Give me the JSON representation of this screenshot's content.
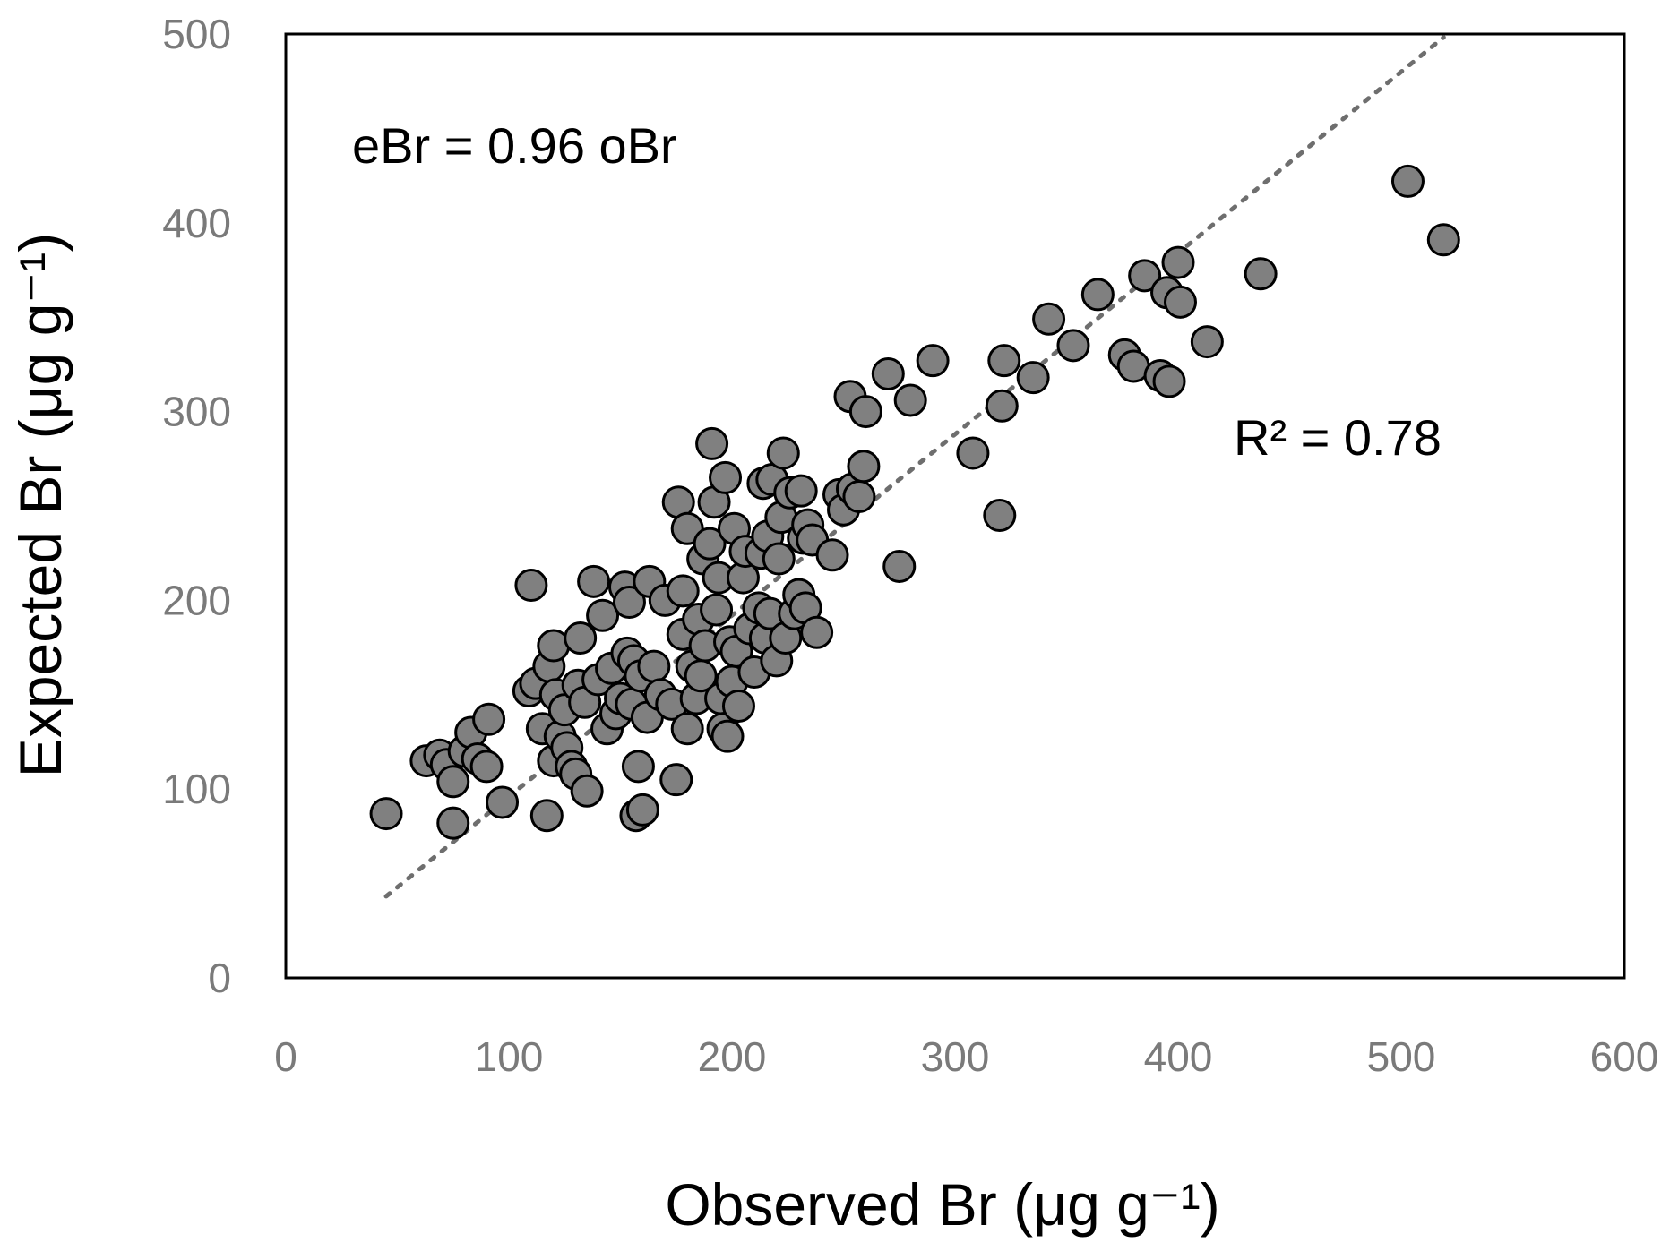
{
  "chart_data": {
    "type": "scatter",
    "xlabel": "Observed Br (μg g⁻¹)",
    "ylabel": "Expected Br (μg g⁻¹)",
    "xlim": [
      0,
      600
    ],
    "ylim": [
      0,
      500
    ],
    "x_ticks": [
      "0",
      "100",
      "200",
      "300",
      "400",
      "500",
      "600"
    ],
    "y_ticks": [
      "0",
      "100",
      "200",
      "300",
      "400",
      "500"
    ],
    "grid": false,
    "marker_color": "#808080",
    "marker_edge_color": "#000000",
    "trendline": {
      "slope": 0.96,
      "intercept": 0,
      "x_range": [
        45,
        519
      ],
      "style": "dotted",
      "color": "#6e6e6e"
    },
    "equation_label": "eBr = 0.96 oBr",
    "r2_label": "R² = 0.78",
    "points": [
      [
        45,
        87
      ],
      [
        63,
        115
      ],
      [
        69,
        118
      ],
      [
        72,
        113
      ],
      [
        75,
        104
      ],
      [
        75,
        82
      ],
      [
        80,
        120
      ],
      [
        83,
        130
      ],
      [
        86,
        116
      ],
      [
        90,
        112
      ],
      [
        91,
        137
      ],
      [
        97,
        93
      ],
      [
        109,
        152
      ],
      [
        110,
        208
      ],
      [
        112,
        156
      ],
      [
        115,
        132
      ],
      [
        117,
        86
      ],
      [
        118,
        165
      ],
      [
        120,
        115
      ],
      [
        120,
        176
      ],
      [
        121,
        150
      ],
      [
        123,
        128
      ],
      [
        125,
        142
      ],
      [
        126,
        122
      ],
      [
        128,
        112
      ],
      [
        130,
        108
      ],
      [
        131,
        155
      ],
      [
        132,
        180
      ],
      [
        134,
        146
      ],
      [
        135,
        99
      ],
      [
        138,
        210
      ],
      [
        140,
        158
      ],
      [
        142,
        192
      ],
      [
        144,
        132
      ],
      [
        146,
        164
      ],
      [
        148,
        140
      ],
      [
        150,
        148
      ],
      [
        152,
        207
      ],
      [
        153,
        172
      ],
      [
        154,
        199
      ],
      [
        155,
        145
      ],
      [
        156,
        168
      ],
      [
        157,
        86
      ],
      [
        158,
        112
      ],
      [
        159,
        160
      ],
      [
        160,
        89
      ],
      [
        162,
        138
      ],
      [
        163,
        210
      ],
      [
        165,
        165
      ],
      [
        168,
        150
      ],
      [
        170,
        200
      ],
      [
        173,
        145
      ],
      [
        175,
        105
      ],
      [
        176,
        252
      ],
      [
        178,
        205
      ],
      [
        178,
        182
      ],
      [
        180,
        238
      ],
      [
        180,
        132
      ],
      [
        182,
        165
      ],
      [
        184,
        148
      ],
      [
        185,
        190
      ],
      [
        186,
        160
      ],
      [
        187,
        222
      ],
      [
        188,
        176
      ],
      [
        190,
        230
      ],
      [
        191,
        283
      ],
      [
        192,
        252
      ],
      [
        193,
        195
      ],
      [
        194,
        212
      ],
      [
        195,
        148
      ],
      [
        196,
        132
      ],
      [
        197,
        265
      ],
      [
        198,
        128
      ],
      [
        199,
        178
      ],
      [
        200,
        157
      ],
      [
        201,
        238
      ],
      [
        202,
        173
      ],
      [
        203,
        144
      ],
      [
        205,
        212
      ],
      [
        206,
        226
      ],
      [
        208,
        185
      ],
      [
        210,
        162
      ],
      [
        212,
        196
      ],
      [
        213,
        225
      ],
      [
        214,
        262
      ],
      [
        215,
        180
      ],
      [
        216,
        234
      ],
      [
        217,
        193
      ],
      [
        218,
        264
      ],
      [
        220,
        168
      ],
      [
        221,
        222
      ],
      [
        222,
        244
      ],
      [
        223,
        278
      ],
      [
        224,
        180
      ],
      [
        226,
        257
      ],
      [
        228,
        193
      ],
      [
        230,
        203
      ],
      [
        231,
        258
      ],
      [
        232,
        233
      ],
      [
        233,
        196
      ],
      [
        234,
        240
      ],
      [
        236,
        232
      ],
      [
        238,
        183
      ],
      [
        245,
        224
      ],
      [
        248,
        256
      ],
      [
        250,
        248
      ],
      [
        253,
        308
      ],
      [
        254,
        259
      ],
      [
        257,
        255
      ],
      [
        259,
        271
      ],
      [
        260,
        300
      ],
      [
        270,
        320
      ],
      [
        275,
        218
      ],
      [
        280,
        306
      ],
      [
        290,
        327
      ],
      [
        308,
        278
      ],
      [
        320,
        245
      ],
      [
        321,
        303
      ],
      [
        322,
        327
      ],
      [
        335,
        318
      ],
      [
        342,
        349
      ],
      [
        353,
        335
      ],
      [
        364,
        362
      ],
      [
        376,
        330
      ],
      [
        380,
        324
      ],
      [
        385,
        372
      ],
      [
        392,
        319
      ],
      [
        395,
        363
      ],
      [
        396,
        316
      ],
      [
        400,
        379
      ],
      [
        401,
        358
      ],
      [
        413,
        337
      ],
      [
        437,
        373
      ],
      [
        503,
        422
      ],
      [
        519,
        391
      ]
    ]
  }
}
